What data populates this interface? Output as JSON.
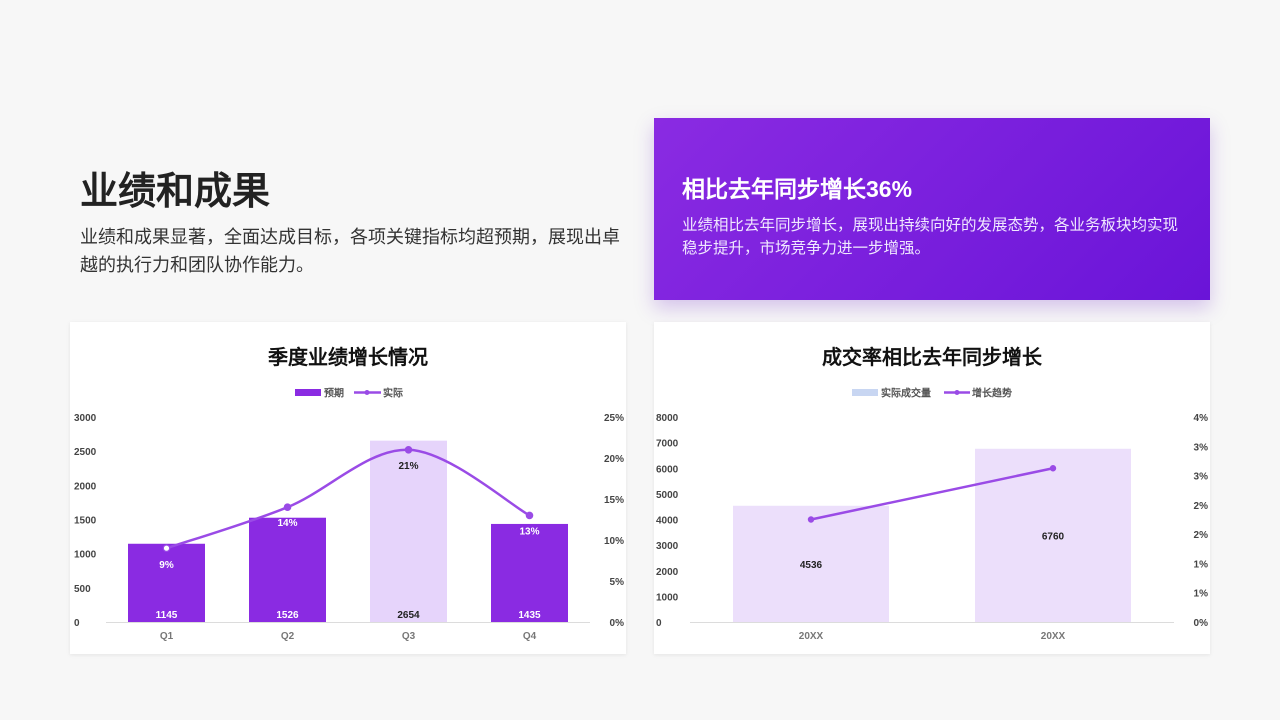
{
  "page": {
    "title": "业绩和成果",
    "description": "业绩和成果显著，全面达成目标，各项关键指标均超预期，展现出卓越的执行力和团队协作能力。"
  },
  "highlight": {
    "title": "相比去年同步增长36%",
    "text": "业绩相比去年同步增长，展现出持续向好的发展态势，各业务板块均实现稳步提升，市场竞争力进一步增强。"
  },
  "colors": {
    "accent": "#8a2be2",
    "accent_dark": "#6a14d8",
    "bar_light": "#e6d4fb",
    "bar_pale": "#ecdffb",
    "line": "#9a4be6",
    "legend_blue": "#c8d6f2"
  },
  "chart_data": [
    {
      "type": "bar",
      "title": "季度业绩增长情况",
      "categories": [
        "Q1",
        "Q2",
        "Q3",
        "Q4"
      ],
      "series": [
        {
          "name": "预期",
          "type": "bar",
          "values": [
            1145,
            1526,
            2654,
            1435
          ],
          "value_labels": [
            "1145",
            "1526",
            "2654",
            "1435"
          ]
        },
        {
          "name": "实际",
          "type": "line",
          "axis": "secondary",
          "values": [
            9,
            14,
            21,
            13
          ],
          "value_labels": [
            "9%",
            "14%",
            "21%",
            "13%"
          ]
        }
      ],
      "ylim": [
        0,
        3000
      ],
      "yticks": [
        "0",
        "500",
        "1000",
        "1500",
        "2000",
        "2500",
        "3000"
      ],
      "y2lim": [
        0,
        25
      ],
      "y2ticks": [
        "0%",
        "5%",
        "10%",
        "15%",
        "20%",
        "25%"
      ],
      "legend": "top-center",
      "grid": false
    },
    {
      "type": "bar",
      "title": "成交率相比去年同步增长",
      "categories": [
        "20XX",
        "20XX"
      ],
      "series": [
        {
          "name": "实际成交量",
          "type": "bar",
          "values": [
            4536,
            6760
          ],
          "value_labels": [
            "4536",
            "6760"
          ]
        },
        {
          "name": "增长趋势",
          "type": "line",
          "axis": "secondary",
          "values": [
            2.0,
            3.0
          ]
        }
      ],
      "ylim": [
        0,
        8000
      ],
      "yticks": [
        "0",
        "1000",
        "2000",
        "3000",
        "4000",
        "5000",
        "6000",
        "7000",
        "8000"
      ],
      "y2lim": [
        0,
        4
      ],
      "y2ticks": [
        "0%",
        "1%",
        "1%",
        "2%",
        "2%",
        "3%",
        "3%",
        "4%"
      ],
      "legend": "top-center",
      "grid": false
    }
  ]
}
